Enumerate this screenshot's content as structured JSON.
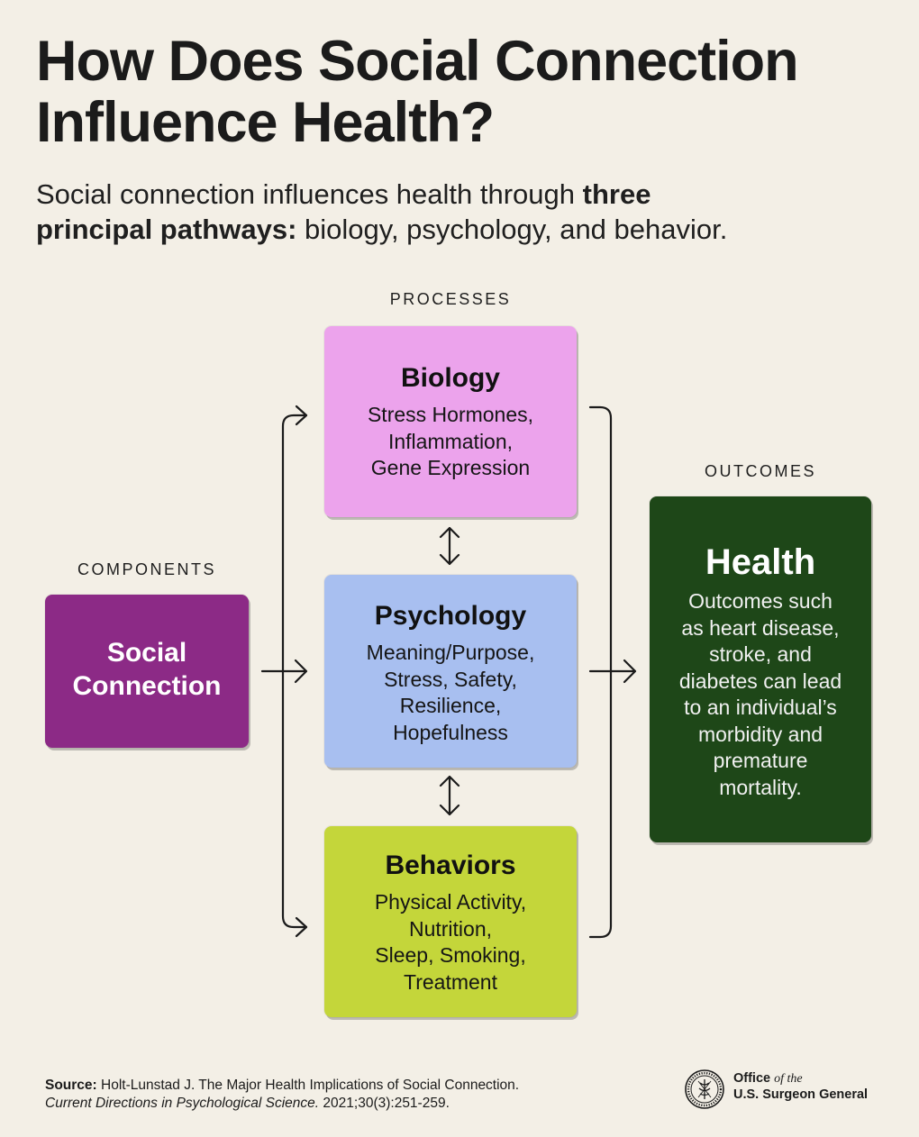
{
  "title": {
    "line1": "How Does Social Connection",
    "line2": "Influence Health?"
  },
  "subtitle": {
    "text1": "Social connection influences health through ",
    "bold1": "three",
    "bold2": "principal pathways:",
    "text2": " biology, psychology, and behavior."
  },
  "labels": {
    "processes": "PROCESSES",
    "components": "COMPONENTS",
    "outcomes": "OUTCOMES"
  },
  "components": {
    "line1": "Social",
    "line2": "Connection"
  },
  "processes": {
    "biology": {
      "title": "Biology",
      "lines": [
        "Stress Hormones,",
        "Inflammation,",
        "Gene Expression"
      ]
    },
    "psychology": {
      "title": "Psychology",
      "lines": [
        "Meaning/Purpose,",
        "Stress, Safety,",
        "Resilience,",
        "Hopefulness"
      ]
    },
    "behaviors": {
      "title": "Behaviors",
      "lines": [
        "Physical Activity,",
        "Nutrition,",
        "Sleep, Smoking,",
        "Treatment"
      ]
    }
  },
  "outcome": {
    "title": "Health",
    "lines": [
      "Outcomes such",
      "as heart disease,",
      "stroke, and",
      "diabetes can lead",
      "to an individual’s",
      "morbidity and",
      "premature",
      "mortality."
    ]
  },
  "source": {
    "label": "Source:",
    "text": " Holt-Lunstad J. The Major Health Implications of Social Connection.",
    "journal": "Current Directions in Psychological Science.",
    "citation": " 2021;30(3):251-259."
  },
  "logo": {
    "office": "Office",
    "of_the": "of the",
    "name": "U.S. Surgeon General"
  },
  "colors": {
    "background": "#f3efe6",
    "social": "#8c2a86",
    "biology": "#eca3ec",
    "psychology": "#a8bff0",
    "behaviors": "#c4d63a",
    "health": "#1e4718"
  }
}
